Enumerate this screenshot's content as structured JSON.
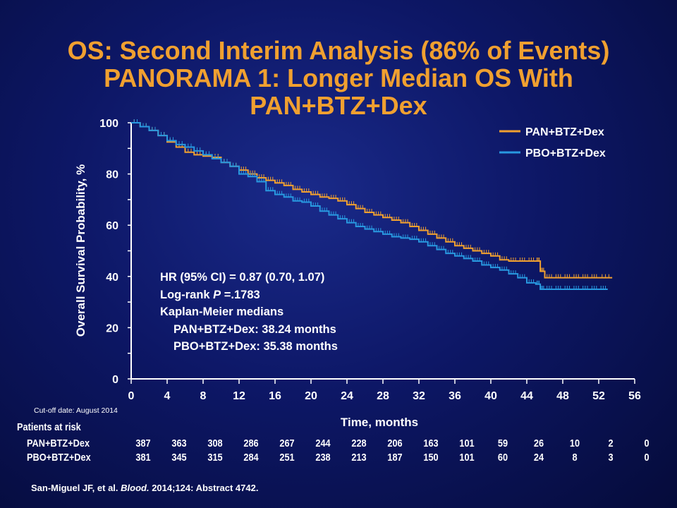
{
  "title": {
    "line1": "OS: Second Interim Analysis (86% of Events)",
    "line2": "PANORAMA 1: Longer Median OS With",
    "line3": "PAN+BTZ+Dex"
  },
  "stats": {
    "hr": "HR (95% CI) = 0.87 (0.70, 1.07)",
    "logrank_prefix": "Log-rank ",
    "logrank_p": "P",
    "logrank_value": " =.1783",
    "km": "Kaplan-Meier  medians",
    "pan_median": "PAN+BTZ+Dex:  38.24 months",
    "pbo_median": "PBO+BTZ+Dex:  35.38 months"
  },
  "cutoff": "Cut-off date: August 2014",
  "risk_table": {
    "title": "Patients at risk",
    "times": [
      0,
      4,
      8,
      12,
      16,
      20,
      24,
      28,
      32,
      36,
      40,
      44,
      48,
      52,
      56
    ],
    "rows": [
      {
        "label": "PAN+BTZ+Dex",
        "values": [
          "387",
          "363",
          "308",
          "286",
          "267",
          "244",
          "228",
          "206",
          "163",
          "101",
          "59",
          "26",
          "10",
          "2",
          "0"
        ]
      },
      {
        "label": "PBO+BTZ+Dex",
        "values": [
          "381",
          "345",
          "315",
          "284",
          "251",
          "238",
          "213",
          "187",
          "150",
          "101",
          "60",
          "24",
          "8",
          "3",
          "0"
        ]
      }
    ]
  },
  "reference": {
    "authors": "San-Miguel JF, et al. ",
    "journal": "Blood.",
    "rest": " 2014;124: Abstract 4742."
  },
  "chart_data": {
    "type": "line",
    "xlabel": "Time, months",
    "ylabel": "Overall Survival Probability,  %",
    "xlim": [
      0,
      56
    ],
    "ylim": [
      0,
      100
    ],
    "xticks": [
      0,
      4,
      8,
      12,
      16,
      20,
      24,
      28,
      32,
      36,
      40,
      44,
      48,
      52,
      56
    ],
    "yticks": [
      0,
      20,
      40,
      60,
      80,
      100
    ],
    "legend_position": "top-right",
    "grid": false,
    "series": [
      {
        "name": "PAN+BTZ+Dex",
        "color": "#f0a030",
        "x": [
          0,
          1,
          2,
          3,
          4,
          5,
          6,
          7,
          8,
          9,
          10,
          11,
          12,
          13,
          14,
          15,
          16,
          17,
          18,
          19,
          20,
          21,
          22,
          23,
          24,
          25,
          26,
          27,
          28,
          29,
          30,
          31,
          32,
          33,
          34,
          35,
          36,
          37,
          38,
          39,
          40,
          41,
          42,
          43,
          44,
          45,
          45.5,
          46,
          47,
          48,
          49,
          50,
          51,
          52,
          53.5
        ],
        "y": [
          100,
          98.5,
          97,
          95,
          92.5,
          90.5,
          88.5,
          87.5,
          87,
          86.5,
          84.5,
          83,
          81.5,
          80,
          78.5,
          77.5,
          76.5,
          75.5,
          74,
          73,
          72,
          71,
          70.5,
          69.5,
          68,
          66.5,
          65,
          64,
          63,
          62,
          61,
          59.5,
          58,
          56.5,
          55,
          53.5,
          52,
          51,
          50,
          49,
          48,
          46.5,
          46,
          46,
          46,
          46,
          42,
          39.5,
          39.5,
          39.5,
          39.5,
          39.5,
          39.5,
          39.5,
          39.5
        ]
      },
      {
        "name": "PBO+BTZ+Dex",
        "color": "#2898e0",
        "x": [
          0,
          1,
          2,
          3,
          4,
          5,
          6,
          7,
          8,
          9,
          10,
          11,
          12,
          13,
          14,
          15,
          16,
          17,
          18,
          19,
          20,
          21,
          22,
          23,
          24,
          25,
          26,
          27,
          28,
          29,
          30,
          31,
          32,
          33,
          34,
          35,
          36,
          37,
          38,
          39,
          40,
          41,
          42,
          43,
          44,
          45,
          45.5,
          46,
          47,
          48,
          49,
          50,
          51,
          52,
          53
        ],
        "y": [
          100,
          98.5,
          97,
          95,
          93,
          91.5,
          90.5,
          89,
          87.5,
          86,
          84.5,
          83,
          80,
          79,
          77,
          73.5,
          72,
          71,
          69.5,
          69,
          67.5,
          65.5,
          64,
          62.5,
          61,
          59.5,
          58.5,
          57.5,
          56.5,
          55.5,
          55,
          54.5,
          53.5,
          52,
          50.5,
          49,
          48,
          47,
          46,
          44.5,
          43.5,
          42.5,
          41,
          39.5,
          37.5,
          37,
          35,
          35,
          35,
          35,
          35,
          35,
          35,
          35,
          35
        ]
      }
    ]
  }
}
